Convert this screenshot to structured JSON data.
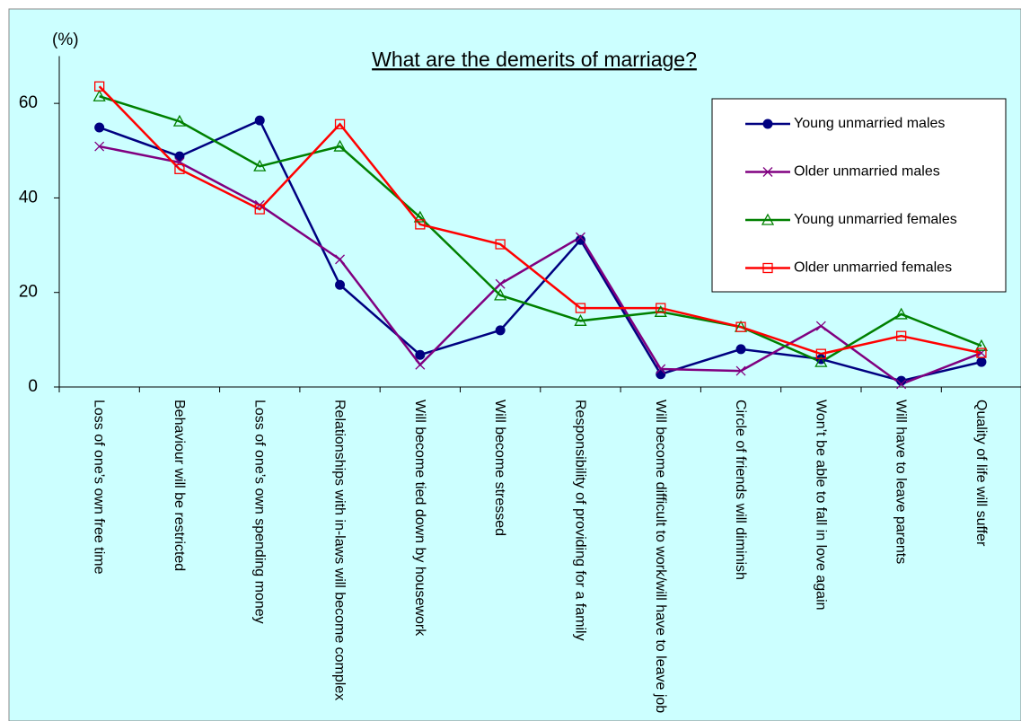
{
  "chart_data": {
    "type": "line",
    "title": "What are the demerits of marriage?",
    "y_label": "(%)",
    "categories": [
      "Loss of one’s own free time",
      "Behaviour will be restricted",
      "Loss of one’s own spending money",
      "Relationships with in-laws will become complex",
      "Will become tied down by housework",
      "Will become stressed",
      "Responsibility of providing for a family",
      "Will become difficult to work/will have to leave job",
      "Circle of friends will diminish",
      "Won’t be able to fall in love again",
      "Will have to leave parents",
      "Quality of life will suffer"
    ],
    "series": [
      {
        "name": "Young unmarried males",
        "color": "#000080",
        "marker": "circle",
        "values": [
          54.9,
          48.8,
          56.4,
          21.6,
          6.8,
          12.0,
          31.1,
          2.7,
          8.0,
          5.9,
          1.3,
          5.3
        ]
      },
      {
        "name": "Older unmarried males",
        "color": "#800080",
        "marker": "x",
        "values": [
          50.9,
          47.5,
          38.5,
          27.0,
          4.7,
          21.8,
          31.7,
          3.8,
          3.4,
          12.9,
          0.6,
          7.2
        ]
      },
      {
        "name": "Young unmarried females",
        "color": "#008000",
        "marker": "triangle",
        "values": [
          61.5,
          56.2,
          46.7,
          50.9,
          35.9,
          19.4,
          14.0,
          15.9,
          12.7,
          5.3,
          15.4,
          8.7
        ]
      },
      {
        "name": "Older unmarried females",
        "color": "#ff0000",
        "marker": "square",
        "values": [
          63.6,
          46.1,
          37.6,
          55.6,
          34.4,
          30.2,
          16.7,
          16.7,
          12.7,
          7.0,
          10.8,
          7.2
        ]
      }
    ],
    "ylim": [
      0,
      70
    ],
    "yticks": [
      0,
      20,
      40,
      60
    ],
    "grid": false,
    "legend": "upper right",
    "background": "#ccffff"
  }
}
